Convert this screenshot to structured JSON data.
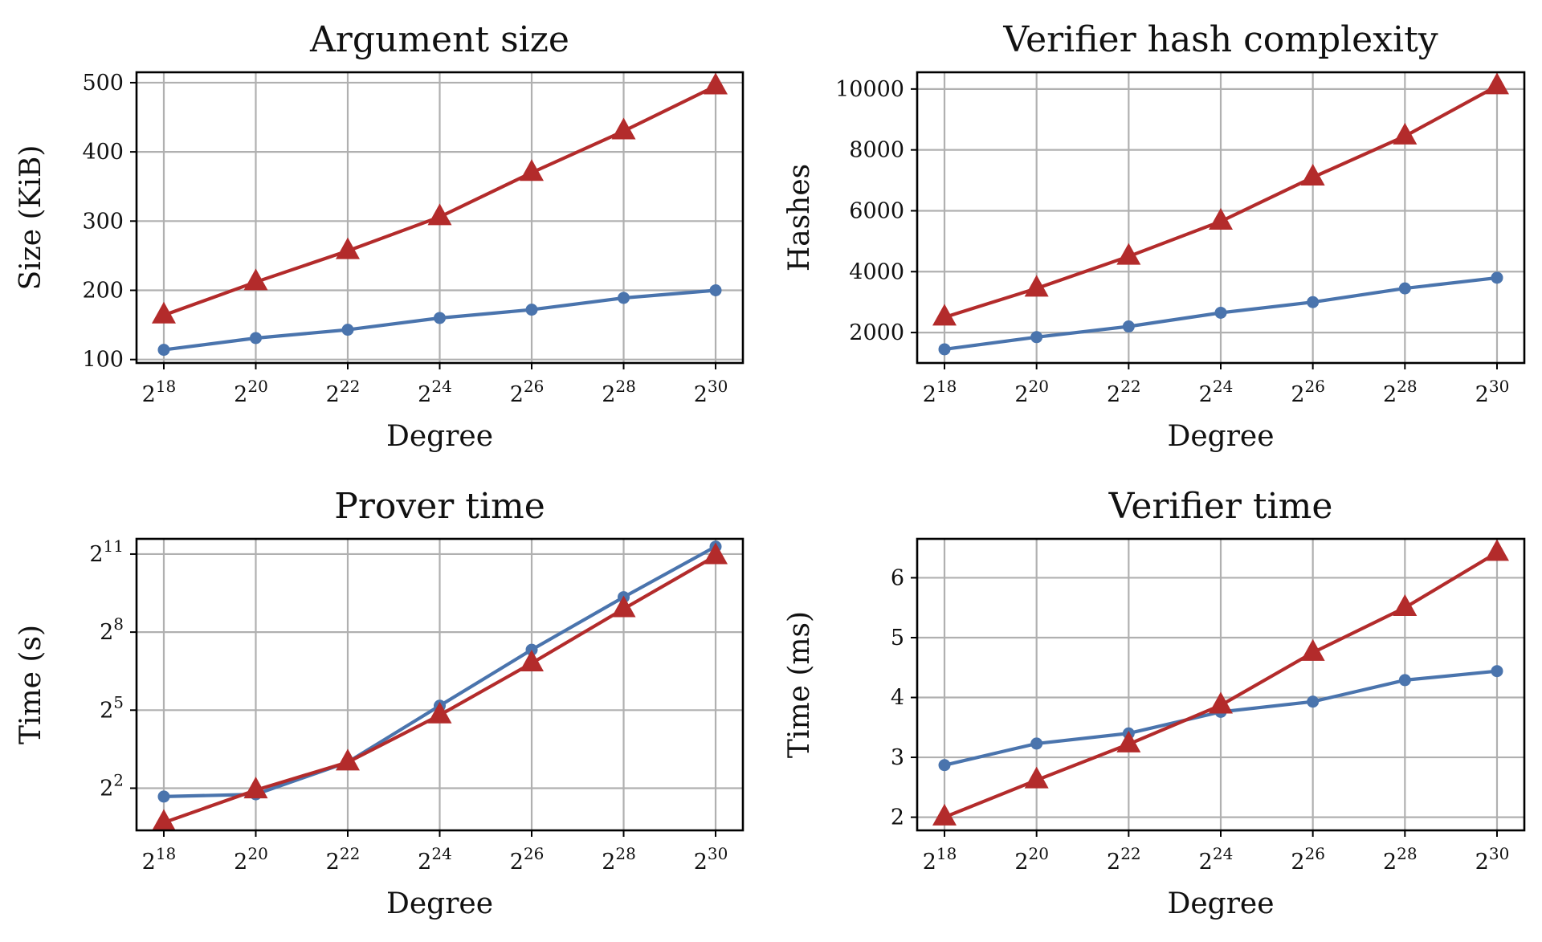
{
  "colors": {
    "series_a": "#4a74ad",
    "series_b": "#b32b2b",
    "grid": "#b0b0b0"
  },
  "chart_data": [
    {
      "type": "line",
      "title": "Argument size",
      "xlabel": "Degree",
      "ylabel": "Size (KiB)",
      "x_scale": "log2",
      "x": [
        262144,
        1048576,
        4194304,
        16777216,
        67108864,
        268435456,
        1073741824
      ],
      "x_ticks": [
        {
          "base": "2",
          "exp": "18"
        },
        {
          "base": "2",
          "exp": "20"
        },
        {
          "base": "2",
          "exp": "22"
        },
        {
          "base": "2",
          "exp": "24"
        },
        {
          "base": "2",
          "exp": "26"
        },
        {
          "base": "2",
          "exp": "28"
        },
        {
          "base": "2",
          "exp": "30"
        }
      ],
      "y_scale": "linear",
      "ylim": [
        95,
        515
      ],
      "y_ticks": [
        {
          "value": 100,
          "label": "100"
        },
        {
          "value": 200,
          "label": "200"
        },
        {
          "value": 300,
          "label": "300"
        },
        {
          "value": 400,
          "label": "400"
        },
        {
          "value": 500,
          "label": "500"
        }
      ],
      "grid": true,
      "series": [
        {
          "marker": "circle",
          "color": "#4a74ad",
          "values": [
            114,
            131,
            143,
            160,
            172,
            189,
            200
          ]
        },
        {
          "marker": "triangle",
          "color": "#b32b2b",
          "values": [
            164,
            212,
            257,
            306,
            370,
            430,
            495
          ]
        }
      ]
    },
    {
      "type": "line",
      "title": "Verifier hash complexity",
      "xlabel": "Degree",
      "ylabel": "Hashes",
      "x_scale": "log2",
      "x": [
        262144,
        1048576,
        4194304,
        16777216,
        67108864,
        268435456,
        1073741824
      ],
      "x_ticks": [
        {
          "base": "2",
          "exp": "18"
        },
        {
          "base": "2",
          "exp": "20"
        },
        {
          "base": "2",
          "exp": "22"
        },
        {
          "base": "2",
          "exp": "24"
        },
        {
          "base": "2",
          "exp": "26"
        },
        {
          "base": "2",
          "exp": "28"
        },
        {
          "base": "2",
          "exp": "30"
        }
      ],
      "y_scale": "linear",
      "ylim": [
        1000,
        10550
      ],
      "y_ticks": [
        {
          "value": 2000,
          "label": "2000"
        },
        {
          "value": 4000,
          "label": "4000"
        },
        {
          "value": 6000,
          "label": "6000"
        },
        {
          "value": 8000,
          "label": "8000"
        },
        {
          "value": 10000,
          "label": "10000"
        }
      ],
      "grid": true,
      "series": [
        {
          "marker": "circle",
          "color": "#4a74ad",
          "values": [
            1450,
            1850,
            2200,
            2650,
            3000,
            3450,
            3800
          ]
        },
        {
          "marker": "triangle",
          "color": "#b32b2b",
          "values": [
            2500,
            3450,
            4500,
            5650,
            7100,
            8450,
            10100
          ]
        }
      ]
    },
    {
      "type": "line",
      "title": "Prover time",
      "xlabel": "Degree",
      "ylabel": "Time (s)",
      "x_scale": "log2",
      "x": [
        262144,
        1048576,
        4194304,
        16777216,
        67108864,
        268435456,
        1073741824
      ],
      "x_ticks": [
        {
          "base": "2",
          "exp": "18"
        },
        {
          "base": "2",
          "exp": "20"
        },
        {
          "base": "2",
          "exp": "22"
        },
        {
          "base": "2",
          "exp": "24"
        },
        {
          "base": "2",
          "exp": "26"
        },
        {
          "base": "2",
          "exp": "28"
        },
        {
          "base": "2",
          "exp": "30"
        }
      ],
      "y_scale": "log2",
      "ylim": [
        1.3,
        3072
      ],
      "y_ticks": [
        {
          "value": 4,
          "label": "2",
          "exp": "2"
        },
        {
          "value": 32,
          "label": "2",
          "exp": "5"
        },
        {
          "value": 256,
          "label": "2",
          "exp": "8"
        },
        {
          "value": 2048,
          "label": "2",
          "exp": "11"
        }
      ],
      "grid": true,
      "series": [
        {
          "marker": "circle",
          "color": "#4a74ad",
          "values": [
            3.2,
            3.4,
            8,
            36,
            160,
            650,
            2500
          ]
        },
        {
          "marker": "triangle",
          "color": "#b32b2b",
          "values": [
            1.6,
            3.8,
            8,
            28,
            112,
            475,
            1950
          ]
        }
      ]
    },
    {
      "type": "line",
      "title": "Verifier time",
      "xlabel": "Degree",
      "ylabel": "Time (ms)",
      "x_scale": "log2",
      "x": [
        262144,
        1048576,
        4194304,
        16777216,
        67108864,
        268435456,
        1073741824
      ],
      "x_ticks": [
        {
          "base": "2",
          "exp": "18"
        },
        {
          "base": "2",
          "exp": "20"
        },
        {
          "base": "2",
          "exp": "22"
        },
        {
          "base": "2",
          "exp": "24"
        },
        {
          "base": "2",
          "exp": "26"
        },
        {
          "base": "2",
          "exp": "28"
        },
        {
          "base": "2",
          "exp": "30"
        }
      ],
      "y_scale": "linear",
      "ylim": [
        1.78,
        6.65
      ],
      "y_ticks": [
        {
          "value": 2,
          "label": "2"
        },
        {
          "value": 3,
          "label": "3"
        },
        {
          "value": 4,
          "label": "4"
        },
        {
          "value": 5,
          "label": "5"
        },
        {
          "value": 6,
          "label": "6"
        }
      ],
      "grid": true,
      "series": [
        {
          "marker": "circle",
          "color": "#4a74ad",
          "values": [
            2.87,
            3.23,
            3.4,
            3.76,
            3.93,
            4.29,
            4.44
          ]
        },
        {
          "marker": "triangle",
          "color": "#b32b2b",
          "values": [
            2.0,
            2.62,
            3.22,
            3.87,
            4.75,
            5.5,
            6.42
          ]
        }
      ]
    }
  ]
}
